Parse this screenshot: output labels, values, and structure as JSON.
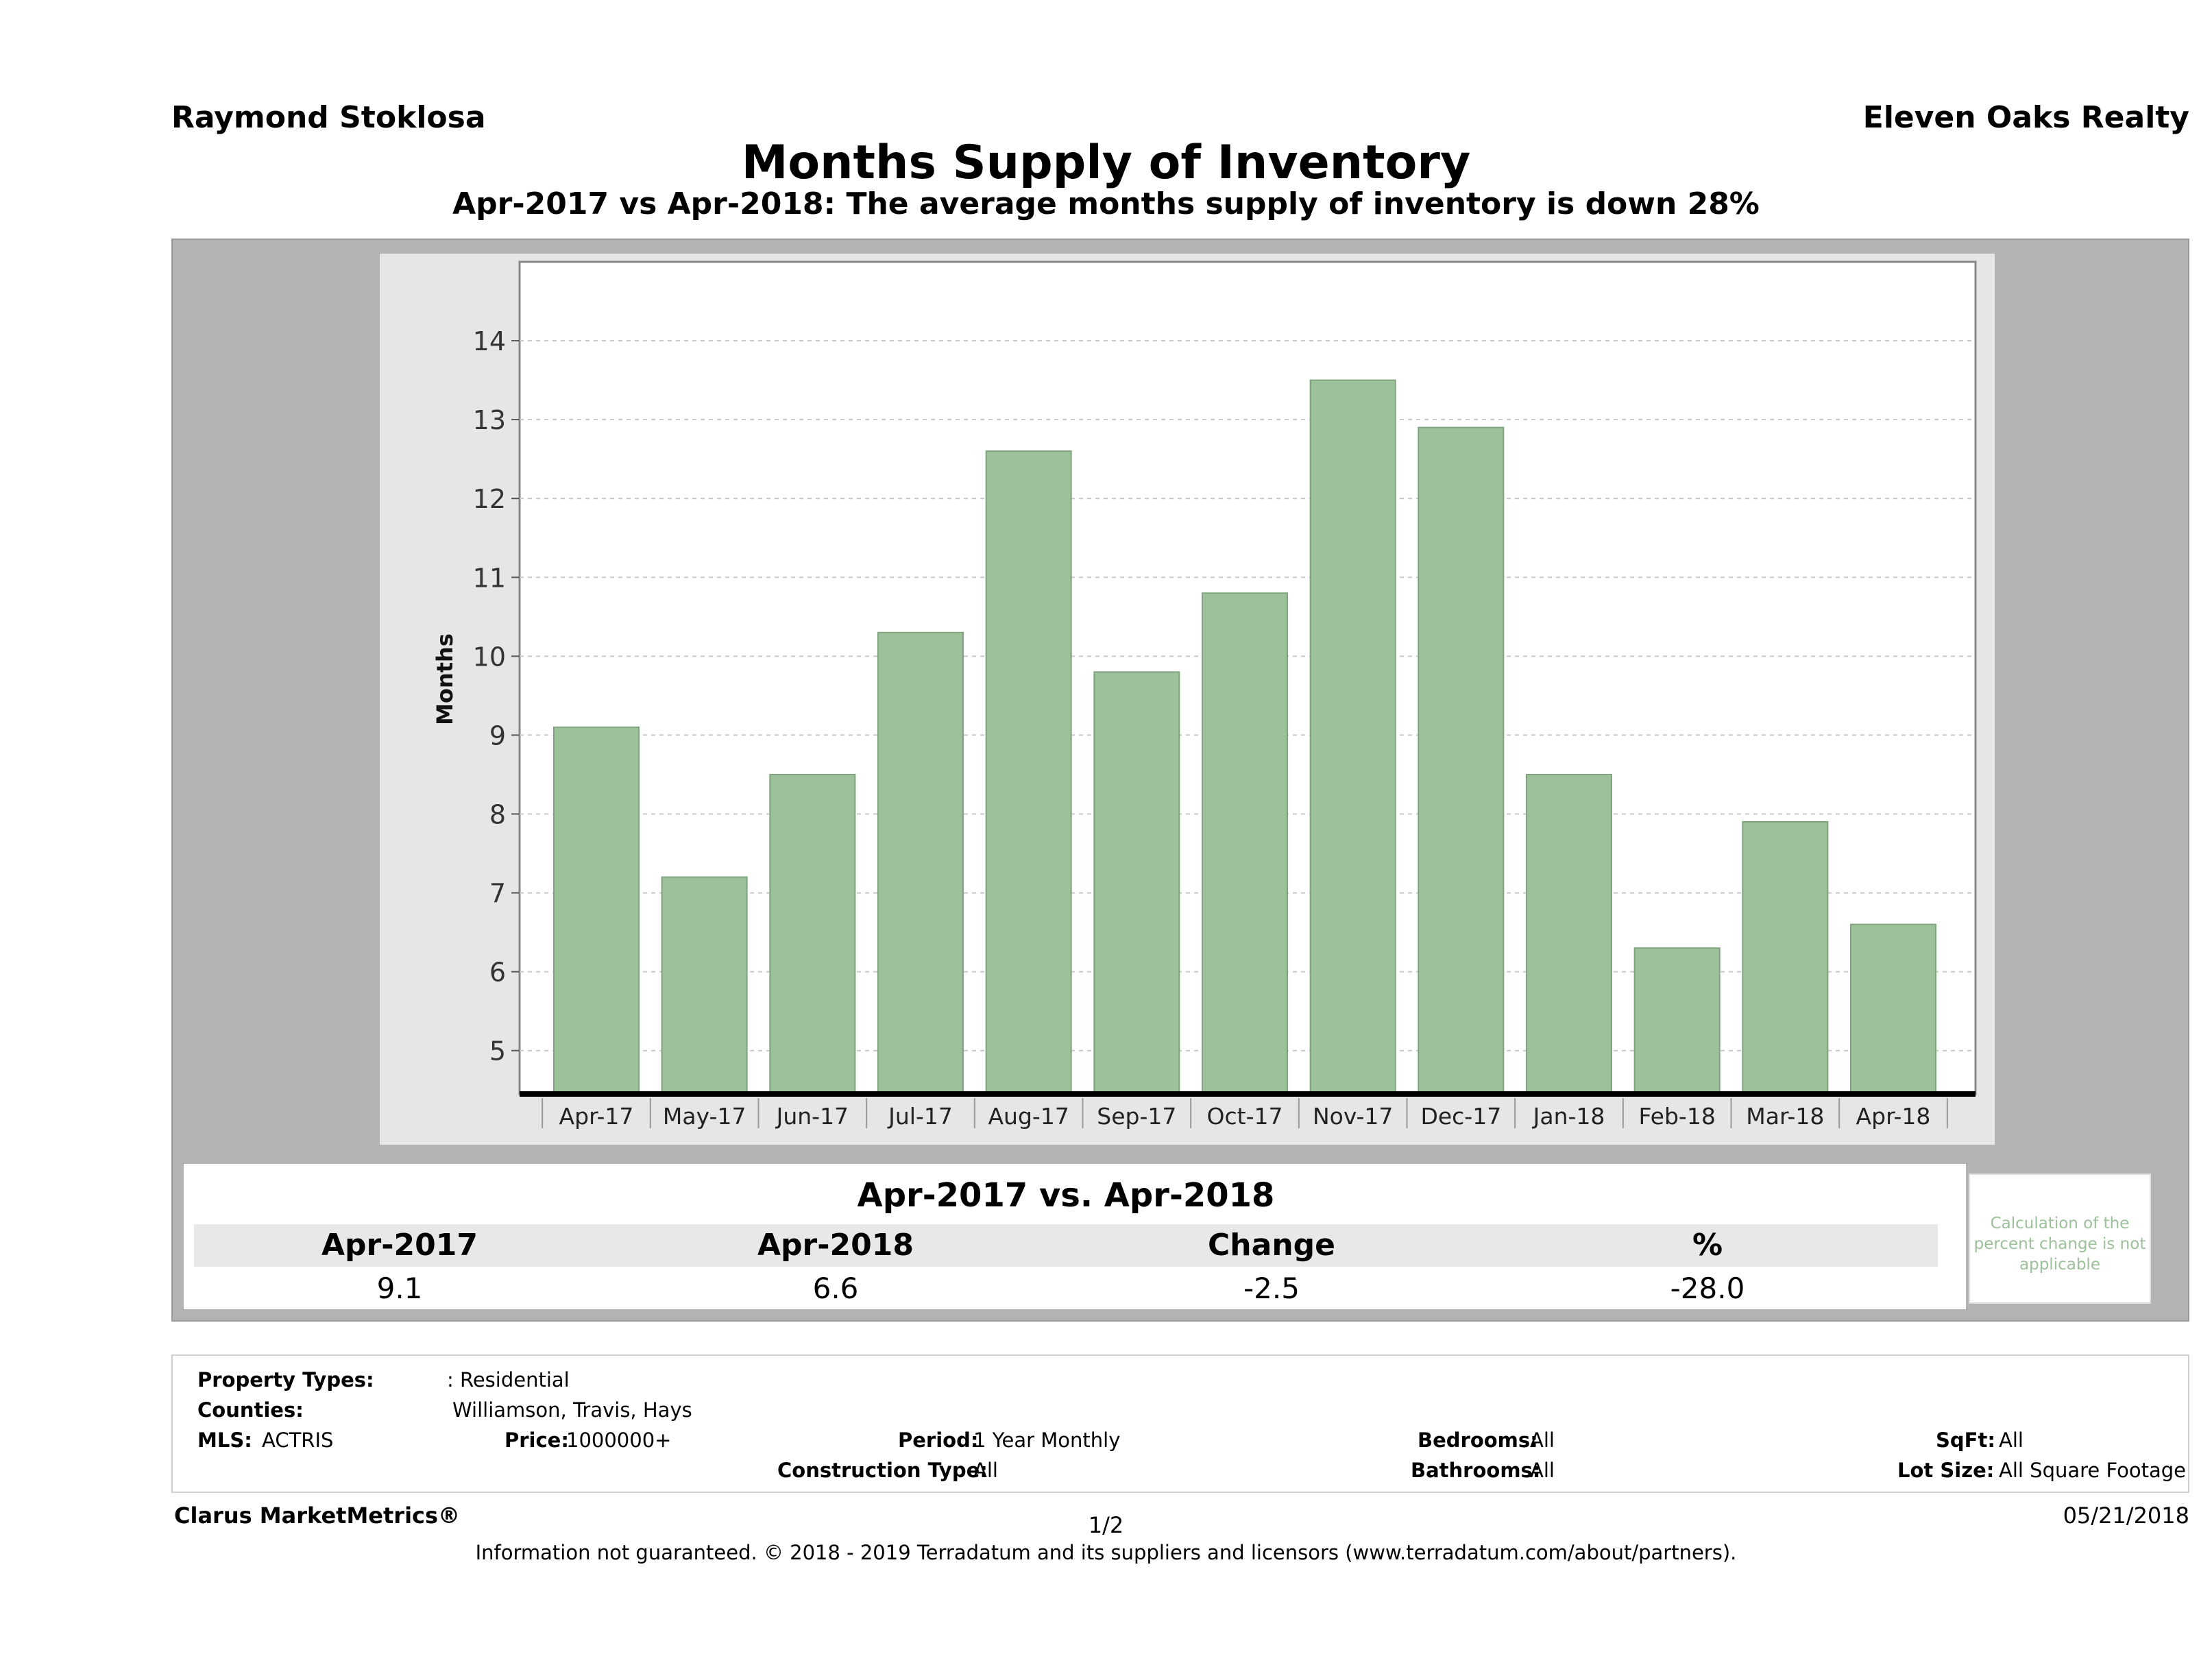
{
  "header": {
    "agent": "Raymond Stoklosa",
    "brokerage": "Eleven Oaks Realty"
  },
  "colors": {
    "bar_fill": "#9dc29b",
    "bar_stroke": "#7fa37d",
    "frame": "#b3b3b3",
    "panel": "#e6e6e6",
    "note_text": "#9cc19a"
  },
  "chart_data": {
    "type": "bar",
    "title": "Months Supply of Inventory",
    "subtitle": "Apr-2017 vs Apr-2018: The average months supply of inventory is down 28%",
    "xlabel": "",
    "ylabel": "Months",
    "categories": [
      "Apr-17",
      "May-17",
      "Jun-17",
      "Jul-17",
      "Aug-17",
      "Sep-17",
      "Oct-17",
      "Nov-17",
      "Dec-17",
      "Jan-18",
      "Feb-18",
      "Mar-18",
      "Apr-18"
    ],
    "values": [
      9.1,
      7.2,
      8.5,
      10.3,
      12.6,
      9.8,
      10.8,
      13.5,
      12.9,
      8.5,
      6.3,
      7.9,
      6.6
    ],
    "yticks": [
      5,
      6,
      7,
      8,
      9,
      10,
      11,
      12,
      13,
      14
    ],
    "ylim": [
      4.45,
      15
    ],
    "grid": true,
    "legend": "none"
  },
  "comparison": {
    "heading": "Apr-2017 vs. Apr-2018",
    "labels": [
      "Apr-2017",
      "Apr-2018",
      "Change",
      "%"
    ],
    "values": [
      "9.1",
      "6.6",
      "-2.5",
      "-28.0"
    ],
    "note": "Calculation of the percent change is not applicable"
  },
  "filters": {
    "property_types_label": "Property Types:",
    "property_types_value": ": Residential",
    "counties_label": "Counties:",
    "counties_value": "Williamson, Travis, Hays",
    "mls_label": "MLS:",
    "mls_value": "ACTRIS",
    "price_label": "Price:",
    "price_value": "1000000+",
    "period_label": "Period:",
    "period_value": "1 Year Monthly",
    "construction_label": "Construction Type:",
    "construction_value": "All",
    "bedrooms_label": "Bedrooms:",
    "bedrooms_value": "All",
    "bathrooms_label": "Bathrooms:",
    "bathrooms_value": "All",
    "sqft_label": "SqFt:",
    "sqft_value": "All",
    "lot_label": "Lot Size:",
    "lot_value": "All Square Footage"
  },
  "footer": {
    "product": "Clarus MarketMetrics®",
    "page": "1/2",
    "date": "05/21/2018",
    "disclaimer": "Information not guaranteed. © 2018 - 2019 Terradatum and its suppliers and licensors (www.terradatum.com/about/partners)."
  }
}
